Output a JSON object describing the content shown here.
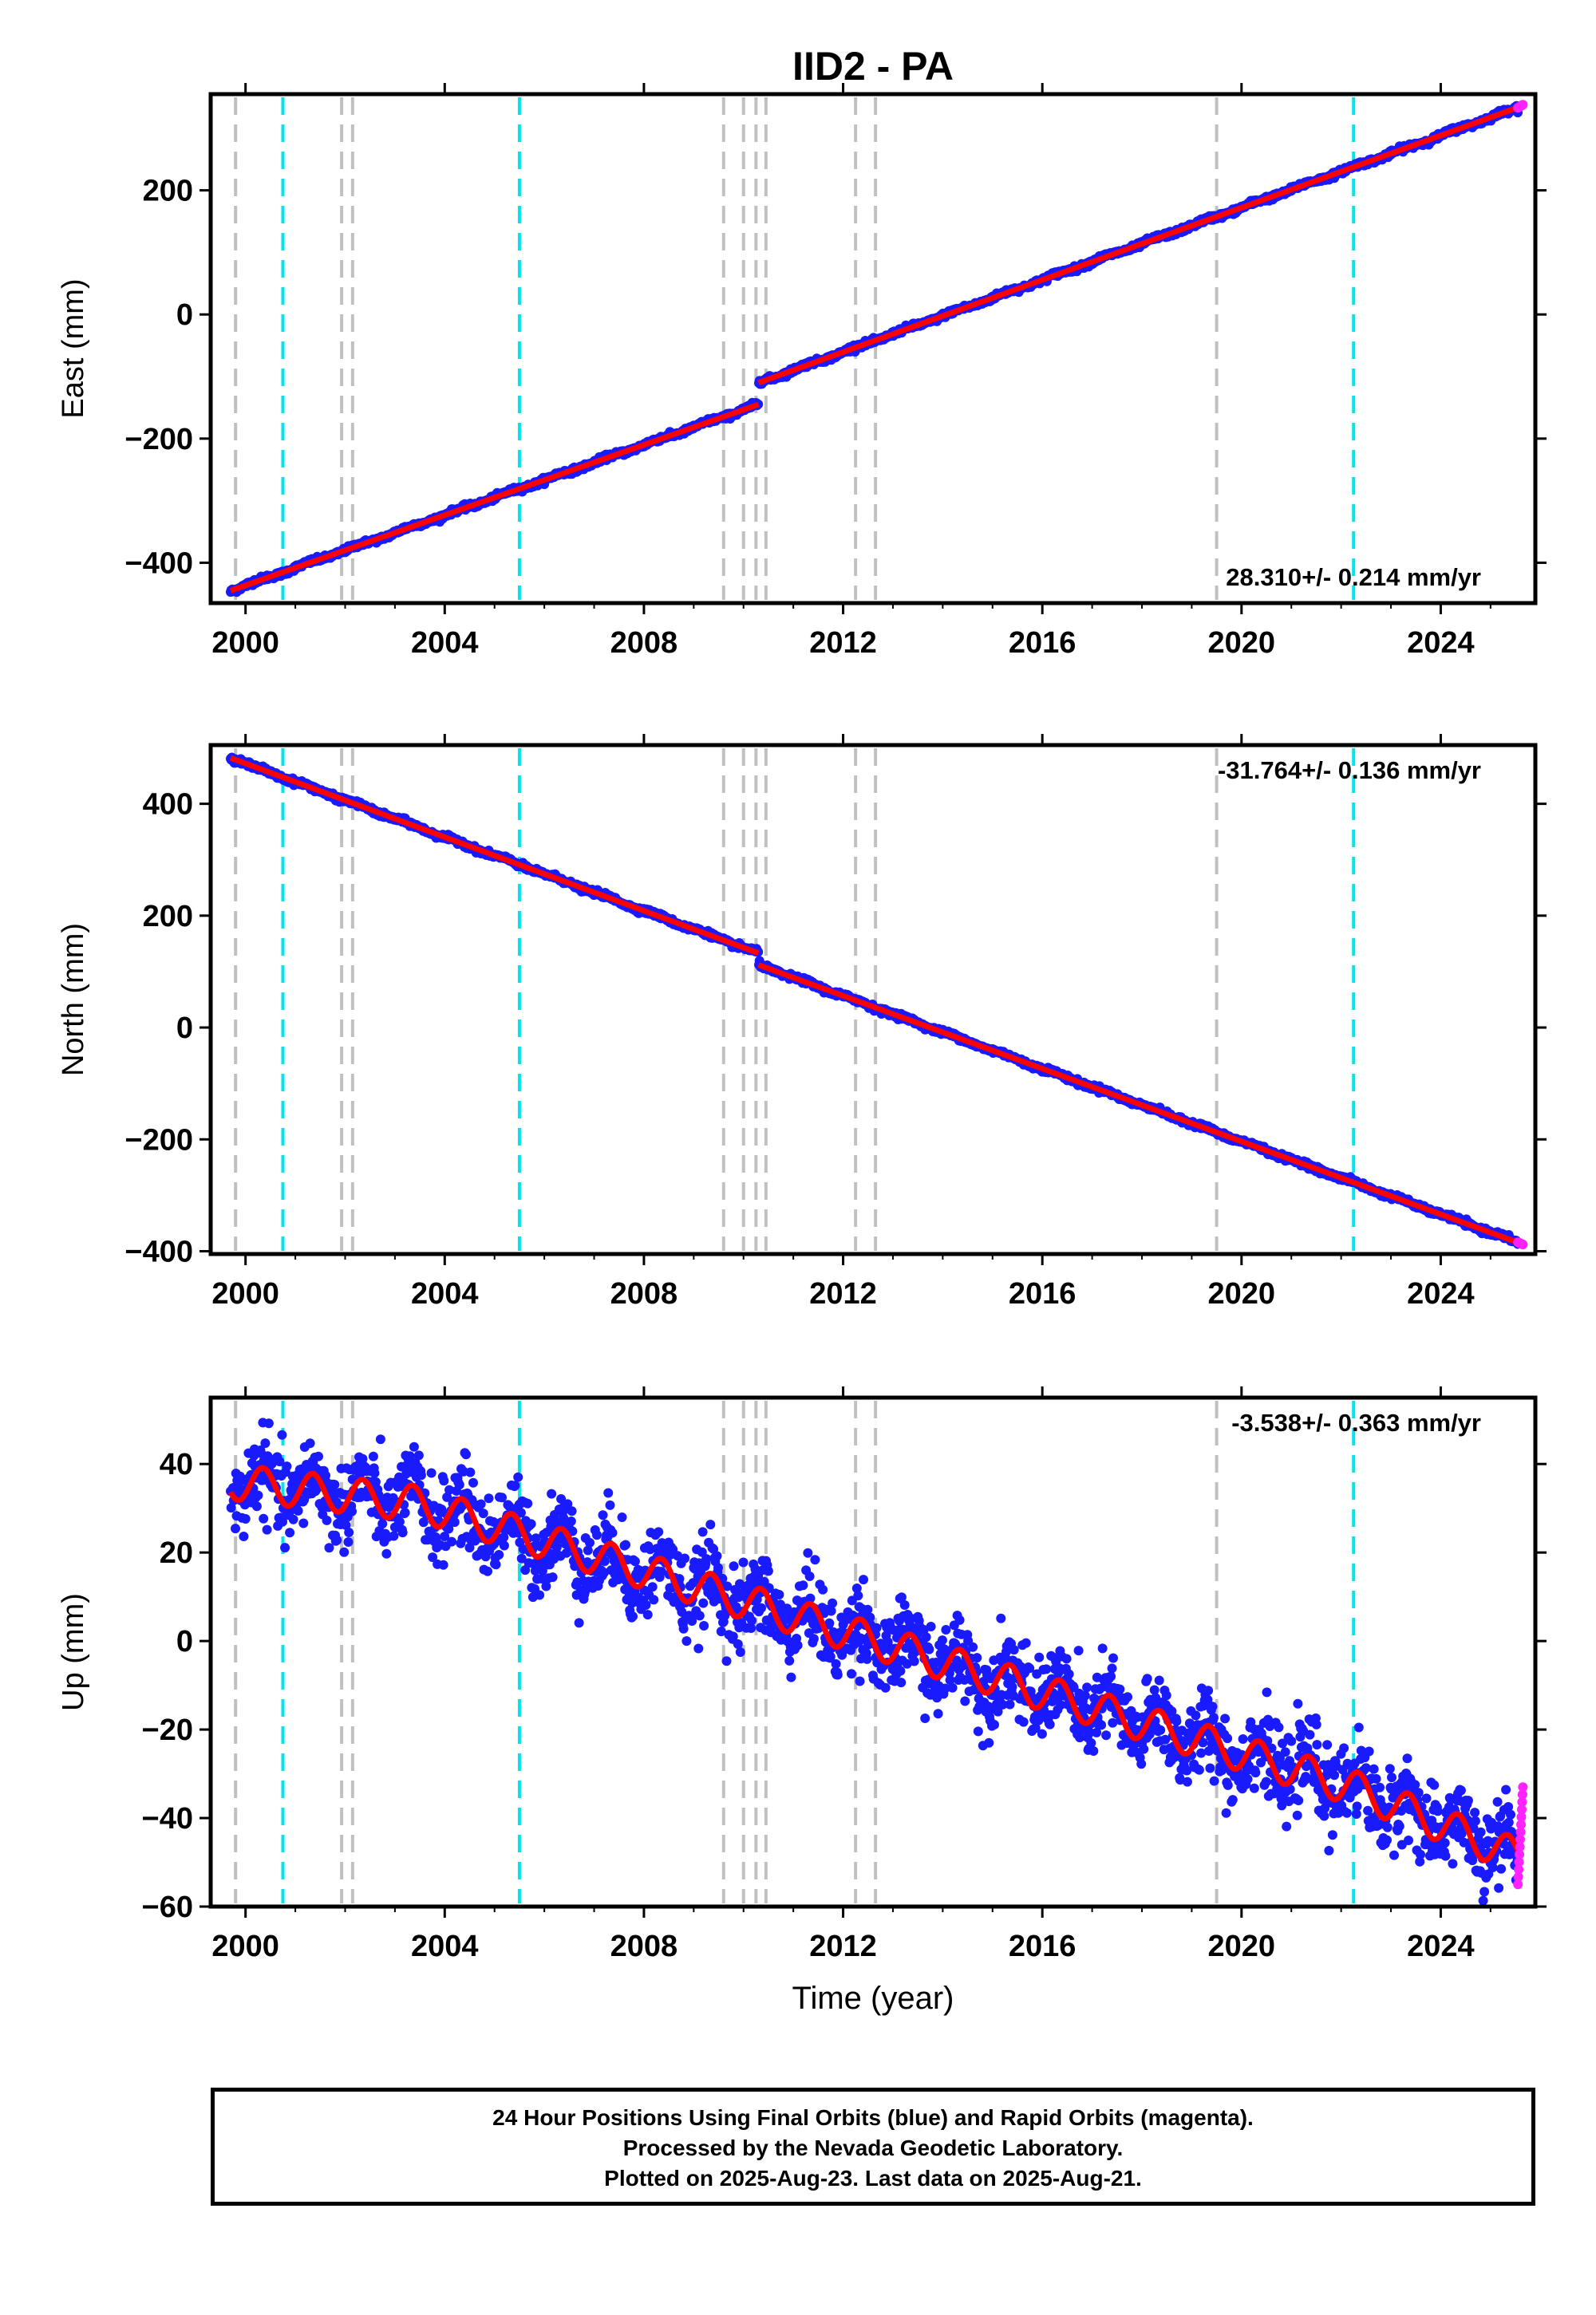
{
  "chart_data": [
    {
      "type": "scatter",
      "title": "IID2 - PA",
      "ylabel": "East (mm)",
      "xlabel": "",
      "xlim": [
        1999.3,
        2025.9
      ],
      "ylim": [
        -465,
        355
      ],
      "xticks": [
        2000,
        2004,
        2008,
        2012,
        2016,
        2020,
        2024
      ],
      "yticks": [
        -400,
        -200,
        0,
        200
      ],
      "rate_label": "28.310+/- 0.214 mm/yr",
      "rate_position": "bottom-right",
      "grid": false,
      "series": [
        {
          "name": "Final Orbits (blue)",
          "color": "#1a1aff",
          "segments": [
            {
              "x": [
                1999.7,
                2010.3
              ],
              "y": [
                -445,
                -145
              ]
            },
            {
              "x": [
                2010.3,
                2025.6
              ],
              "y": [
                -110,
                335
              ]
            }
          ]
        },
        {
          "name": "Rapid Orbits (magenta)",
          "color": "#ff22ff",
          "x": [
            2025.55,
            2025.65
          ],
          "y": [
            333,
            338
          ]
        },
        {
          "name": "model",
          "color": "#ff0000",
          "segments": [
            {
              "x": [
                1999.7,
                2010.3
              ],
              "y": [
                -445,
                -145
              ]
            },
            {
              "x": [
                2010.3,
                2025.6
              ],
              "y": [
                -110,
                335
              ]
            }
          ]
        }
      ],
      "events": [
        {
          "x": 1999.8,
          "color": "#c0c0c0"
        },
        {
          "x": 2000.75,
          "color": "#00e5ee"
        },
        {
          "x": 2001.93,
          "color": "#c0c0c0"
        },
        {
          "x": 2002.15,
          "color": "#c0c0c0"
        },
        {
          "x": 2005.5,
          "color": "#00e5ee"
        },
        {
          "x": 2009.6,
          "color": "#c0c0c0"
        },
        {
          "x": 2010.0,
          "color": "#c0c0c0"
        },
        {
          "x": 2010.25,
          "color": "#c0c0c0"
        },
        {
          "x": 2010.45,
          "color": "#c0c0c0"
        },
        {
          "x": 2012.25,
          "color": "#c0c0c0"
        },
        {
          "x": 2012.65,
          "color": "#c0c0c0"
        },
        {
          "x": 2019.5,
          "color": "#c0c0c0"
        },
        {
          "x": 2022.25,
          "color": "#00e5ee"
        }
      ]
    },
    {
      "type": "scatter",
      "title": "",
      "ylabel": "North (mm)",
      "xlabel": "",
      "xlim": [
        1999.3,
        2025.9
      ],
      "ylim": [
        -405,
        505
      ],
      "xticks": [
        2000,
        2004,
        2008,
        2012,
        2016,
        2020,
        2024
      ],
      "yticks": [
        -400,
        -200,
        0,
        200,
        400
      ],
      "rate_label": "-31.764+/- 0.136 mm/yr",
      "rate_position": "top-right",
      "grid": false,
      "series": [
        {
          "name": "Final Orbits (blue)",
          "color": "#1a1aff",
          "segments": [
            {
              "x": [
                1999.7,
                2010.3
              ],
              "y": [
                482,
                133
              ]
            },
            {
              "x": [
                2010.3,
                2025.6
              ],
              "y": [
                112,
                -386
              ]
            }
          ]
        },
        {
          "name": "Rapid Orbits (magenta)",
          "color": "#ff22ff",
          "x": [
            2025.55,
            2025.65
          ],
          "y": [
            -384,
            -388
          ]
        },
        {
          "name": "model",
          "color": "#ff0000",
          "segments": [
            {
              "x": [
                1999.7,
                2010.3
              ],
              "y": [
                482,
                133
              ]
            },
            {
              "x": [
                2010.3,
                2025.6
              ],
              "y": [
                112,
                -386
              ]
            }
          ]
        }
      ],
      "events": [
        {
          "x": 1999.8,
          "color": "#c0c0c0"
        },
        {
          "x": 2000.75,
          "color": "#00e5ee"
        },
        {
          "x": 2001.93,
          "color": "#c0c0c0"
        },
        {
          "x": 2002.15,
          "color": "#c0c0c0"
        },
        {
          "x": 2005.5,
          "color": "#00e5ee"
        },
        {
          "x": 2009.6,
          "color": "#c0c0c0"
        },
        {
          "x": 2010.0,
          "color": "#c0c0c0"
        },
        {
          "x": 2010.25,
          "color": "#c0c0c0"
        },
        {
          "x": 2010.45,
          "color": "#c0c0c0"
        },
        {
          "x": 2012.25,
          "color": "#c0c0c0"
        },
        {
          "x": 2012.65,
          "color": "#c0c0c0"
        },
        {
          "x": 2019.5,
          "color": "#c0c0c0"
        },
        {
          "x": 2022.25,
          "color": "#00e5ee"
        }
      ]
    },
    {
      "type": "scatter",
      "title": "",
      "ylabel": "Up (mm)",
      "xlabel": "Time (year)",
      "xlim": [
        1999.3,
        2025.9
      ],
      "ylim": [
        -60,
        55
      ],
      "xticks": [
        2000,
        2004,
        2008,
        2012,
        2016,
        2020,
        2024
      ],
      "yticks": [
        -60,
        -40,
        -20,
        0,
        20,
        40
      ],
      "rate_label": "-3.538+/- 0.363 mm/yr",
      "rate_position": "top-right",
      "grid": false,
      "series": [
        {
          "name": "Final Orbits (blue)",
          "color": "#1a1aff",
          "trend": {
            "x": [
              1999.7,
              2003.5,
              2010.3,
              2022.2,
              2025.6
            ],
            "y": [
              36,
              31,
              8,
              -33,
              -49
            ]
          },
          "scatter_mm": 6,
          "seasonal_amp_mm": 4
        },
        {
          "name": "Rapid Orbits (magenta)",
          "color": "#ff22ff",
          "x": [
            2025.55,
            2025.65
          ],
          "y": [
            -55,
            -33
          ]
        },
        {
          "name": "model",
          "color": "#ff0000",
          "trend": {
            "x": [
              1999.7,
              2003.5,
              2010.3,
              2022.2,
              2025.6
            ],
            "y": [
              36,
              31,
              8,
              -33,
              -49
            ]
          },
          "seasonal_amp_mm": 4
        }
      ],
      "events": [
        {
          "x": 1999.8,
          "color": "#c0c0c0"
        },
        {
          "x": 2000.75,
          "color": "#00e5ee"
        },
        {
          "x": 2001.93,
          "color": "#c0c0c0"
        },
        {
          "x": 2002.15,
          "color": "#c0c0c0"
        },
        {
          "x": 2005.5,
          "color": "#00e5ee"
        },
        {
          "x": 2009.6,
          "color": "#c0c0c0"
        },
        {
          "x": 2010.0,
          "color": "#c0c0c0"
        },
        {
          "x": 2010.25,
          "color": "#c0c0c0"
        },
        {
          "x": 2010.45,
          "color": "#c0c0c0"
        },
        {
          "x": 2012.25,
          "color": "#c0c0c0"
        },
        {
          "x": 2012.65,
          "color": "#c0c0c0"
        },
        {
          "x": 2019.5,
          "color": "#c0c0c0"
        },
        {
          "x": 2022.25,
          "color": "#00e5ee"
        }
      ]
    }
  ],
  "footer": {
    "line1": "24 Hour Positions Using Final Orbits (blue) and Rapid Orbits (magenta).",
    "line2": "Processed by the Nevada Geodetic Laboratory.",
    "line3": "Plotted on 2025-Aug-23. Last data on 2025-Aug-21."
  }
}
